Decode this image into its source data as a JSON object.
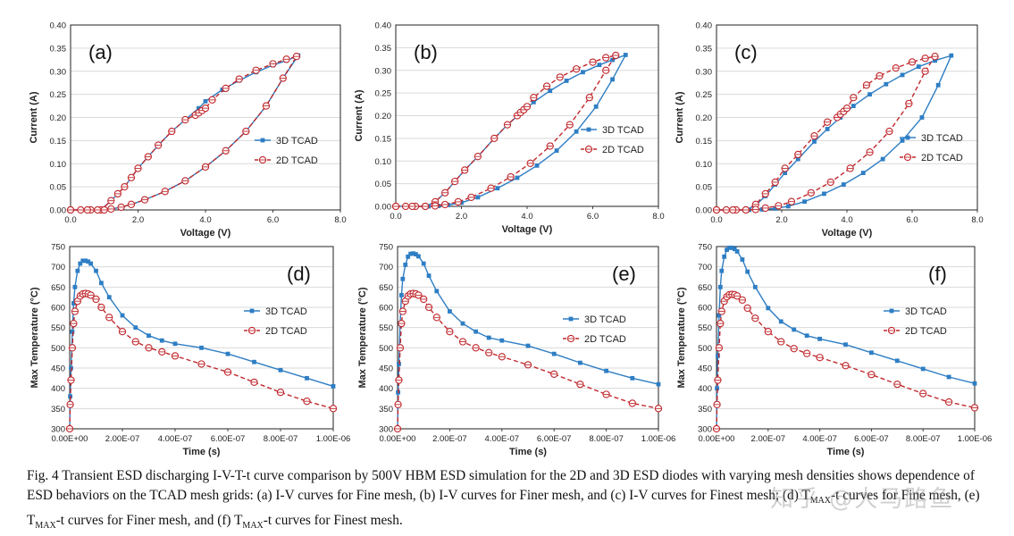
{
  "chart_data": [
    {
      "id": "a",
      "type": "scatter",
      "panel_label": "(a)",
      "xlabel": "Voltage (V)",
      "ylabel": "Current (A)",
      "xlim": [
        0,
        8
      ],
      "ylim": [
        0,
        0.4
      ],
      "xticks": [
        "0.0",
        "2.0",
        "4.0",
        "6.0",
        "8.0"
      ],
      "yticks": [
        "0.00",
        "0.05",
        "0.10",
        "0.15",
        "0.20",
        "0.25",
        "0.30",
        "0.35",
        "0.40"
      ],
      "legend_position": "center-right",
      "series": [
        {
          "name": "3D TCAD",
          "color": "#2e7ec4",
          "style": "solid-square",
          "x": [
            0.0,
            0.3,
            0.6,
            0.9,
            1.2,
            1.4,
            1.6,
            1.8,
            2.0,
            2.3,
            2.6,
            3.0,
            3.4,
            3.8,
            4.0,
            4.5,
            5.0,
            5.5,
            6.0,
            6.4,
            6.75,
            6.3,
            5.8,
            5.2,
            4.6,
            4.0,
            3.4,
            2.8,
            2.2,
            1.8,
            1.5,
            1.2,
            1.0,
            0.8,
            0.5,
            0.0
          ],
          "y": [
            0.0,
            0.0,
            0.0,
            0.0,
            0.02,
            0.035,
            0.05,
            0.07,
            0.09,
            0.115,
            0.14,
            0.17,
            0.195,
            0.22,
            0.235,
            0.26,
            0.28,
            0.298,
            0.313,
            0.323,
            0.334,
            0.285,
            0.225,
            0.17,
            0.128,
            0.093,
            0.063,
            0.04,
            0.022,
            0.012,
            0.006,
            0.002,
            0.0,
            0.0,
            0.0,
            0.0
          ]
        },
        {
          "name": "2D TCAD",
          "color": "#c0282d",
          "style": "dashed-open-circle",
          "x": [
            0.0,
            0.3,
            0.6,
            0.9,
            1.2,
            1.4,
            1.6,
            1.8,
            2.0,
            2.3,
            2.6,
            3.0,
            3.4,
            3.7,
            3.8,
            3.9,
            4.0,
            4.2,
            4.6,
            5.0,
            5.5,
            6.0,
            6.4,
            6.7,
            6.3,
            5.8,
            5.2,
            4.6,
            4.0,
            3.4,
            2.8,
            2.2,
            1.8,
            1.5,
            1.2,
            1.0,
            0.8,
            0.5,
            0.0
          ],
          "y": [
            0.0,
            0.0,
            0.0,
            0.0,
            0.02,
            0.035,
            0.05,
            0.07,
            0.09,
            0.115,
            0.14,
            0.17,
            0.195,
            0.205,
            0.21,
            0.215,
            0.22,
            0.238,
            0.263,
            0.283,
            0.302,
            0.316,
            0.326,
            0.332,
            0.285,
            0.225,
            0.17,
            0.128,
            0.093,
            0.063,
            0.04,
            0.022,
            0.012,
            0.006,
            0.002,
            0.0,
            0.0,
            0.0,
            0.0
          ]
        }
      ]
    },
    {
      "id": "b",
      "type": "scatter",
      "panel_label": "(b)",
      "xlabel": "Voltage (V)",
      "ylabel": "Current (A)",
      "xlim": [
        0,
        8
      ],
      "ylim": [
        0,
        0.4
      ],
      "xticks": [
        "0.0",
        "2.0",
        "4.0",
        "6.0",
        "8.0"
      ],
      "yticks": [
        "0.00",
        "0.05",
        "0.10",
        "0.15",
        "0.20",
        "0.25",
        "0.30",
        "0.35",
        "0.40"
      ],
      "legend_position": "center-right",
      "series": [
        {
          "name": "3D TCAD",
          "color": "#2e7ec4",
          "style": "solid-square",
          "x": [
            0.0,
            0.3,
            0.6,
            0.9,
            1.2,
            1.5,
            1.8,
            2.1,
            2.5,
            3.0,
            3.4,
            3.8,
            4.2,
            4.7,
            5.2,
            5.7,
            6.2,
            6.6,
            7.0,
            6.6,
            6.1,
            5.5,
            4.9,
            4.3,
            3.7,
            3.1,
            2.5,
            2.0,
            1.6,
            1.3,
            1.0,
            0.5,
            0.0
          ],
          "y": [
            0.0,
            0.0,
            0.0,
            0.0,
            0.01,
            0.03,
            0.055,
            0.08,
            0.11,
            0.15,
            0.18,
            0.205,
            0.23,
            0.255,
            0.277,
            0.296,
            0.312,
            0.323,
            0.334,
            0.28,
            0.22,
            0.165,
            0.123,
            0.09,
            0.063,
            0.04,
            0.02,
            0.008,
            0.003,
            0.001,
            0.0,
            0.0,
            0.0
          ]
        },
        {
          "name": "2D TCAD",
          "color": "#c0282d",
          "style": "dashed-open-circle",
          "x": [
            0.0,
            0.3,
            0.6,
            0.9,
            1.2,
            1.5,
            1.8,
            2.1,
            2.5,
            3.0,
            3.4,
            3.7,
            3.8,
            3.9,
            4.0,
            4.2,
            4.6,
            5.0,
            5.5,
            6.0,
            6.4,
            6.7,
            6.4,
            5.9,
            5.3,
            4.7,
            4.1,
            3.5,
            2.9,
            2.3,
            1.9,
            1.5,
            1.2,
            0.9,
            0.5,
            0.0
          ],
          "y": [
            0.0,
            0.0,
            0.0,
            0.0,
            0.01,
            0.03,
            0.055,
            0.08,
            0.11,
            0.15,
            0.18,
            0.2,
            0.207,
            0.213,
            0.22,
            0.24,
            0.265,
            0.285,
            0.303,
            0.318,
            0.328,
            0.333,
            0.3,
            0.24,
            0.18,
            0.133,
            0.095,
            0.065,
            0.04,
            0.02,
            0.01,
            0.004,
            0.001,
            0.0,
            0.0,
            0.0
          ]
        }
      ]
    },
    {
      "id": "c",
      "type": "scatter",
      "panel_label": "(c)",
      "xlabel": "Voltage (V)",
      "ylabel": "Current (A)",
      "xlim": [
        0,
        8
      ],
      "ylim": [
        0,
        0.4
      ],
      "xticks": [
        "0.0",
        "2.0",
        "4.0",
        "6.0",
        "8.0"
      ],
      "yticks": [
        "0.00",
        "0.05",
        "0.10",
        "0.15",
        "0.20",
        "0.25",
        "0.30",
        "0.35",
        "0.40"
      ],
      "legend_position": "center-right",
      "series": [
        {
          "name": "3D TCAD",
          "color": "#2e7ec4",
          "style": "solid-square",
          "x": [
            0.0,
            0.3,
            0.6,
            0.9,
            1.2,
            1.5,
            1.8,
            2.1,
            2.5,
            3.0,
            3.4,
            3.8,
            4.2,
            4.7,
            5.2,
            5.7,
            6.2,
            6.7,
            7.2,
            6.8,
            6.3,
            5.7,
            5.1,
            4.5,
            3.9,
            3.3,
            2.7,
            2.2,
            1.8,
            1.4,
            1.0,
            0.5,
            0.0
          ],
          "y": [
            0.0,
            0.0,
            0.0,
            0.0,
            0.01,
            0.03,
            0.055,
            0.08,
            0.11,
            0.148,
            0.175,
            0.2,
            0.225,
            0.25,
            0.272,
            0.292,
            0.31,
            0.323,
            0.334,
            0.27,
            0.2,
            0.15,
            0.11,
            0.08,
            0.055,
            0.035,
            0.018,
            0.008,
            0.003,
            0.001,
            0.0,
            0.0,
            0.0
          ]
        },
        {
          "name": "2D TCAD",
          "color": "#c0282d",
          "style": "dashed-open-circle",
          "x": [
            0.0,
            0.3,
            0.6,
            0.9,
            1.2,
            1.5,
            1.8,
            2.1,
            2.5,
            3.0,
            3.4,
            3.7,
            3.8,
            3.9,
            4.0,
            4.2,
            4.6,
            5.0,
            5.5,
            6.0,
            6.4,
            6.7,
            6.4,
            5.9,
            5.3,
            4.7,
            4.1,
            3.5,
            2.9,
            2.3,
            1.9,
            1.5,
            1.2,
            0.9,
            0.5,
            0.0
          ],
          "y": [
            0.0,
            0.0,
            0.0,
            0.0,
            0.012,
            0.035,
            0.06,
            0.09,
            0.12,
            0.16,
            0.19,
            0.2,
            0.207,
            0.213,
            0.22,
            0.243,
            0.27,
            0.29,
            0.307,
            0.32,
            0.328,
            0.332,
            0.3,
            0.23,
            0.17,
            0.125,
            0.09,
            0.06,
            0.037,
            0.018,
            0.009,
            0.004,
            0.001,
            0.0,
            0.0,
            0.0
          ]
        }
      ]
    },
    {
      "id": "d",
      "type": "line",
      "panel_label": "(d)",
      "xlabel": "Time (s)",
      "ylabel": "Max Temperature (°C)",
      "xlim": [
        0,
        1e-06
      ],
      "ylim": [
        300,
        750
      ],
      "xticks": [
        "0.00E+00",
        "2.00E-07",
        "4.00E-07",
        "6.00E-07",
        "8.00E-07",
        "1.00E-06"
      ],
      "yticks": [
        "300",
        "350",
        "400",
        "450",
        "500",
        "550",
        "600",
        "650",
        "700",
        "750"
      ],
      "legend_position": "center-right",
      "series": [
        {
          "name": "3D TCAD",
          "color": "#2e7ec4",
          "style": "solid-square",
          "x": [
            0.0,
            2e-09,
            5e-09,
            1e-08,
            1.5e-08,
            2e-08,
            3e-08,
            4e-08,
            5e-08,
            6e-08,
            7e-08,
            8e-08,
            1e-07,
            1.2e-07,
            1.5e-07,
            2e-07,
            2.5e-07,
            3e-07,
            3.5e-07,
            4e-07,
            5e-07,
            6e-07,
            7e-07,
            8e-07,
            9e-07,
            1e-06
          ],
          "y": [
            300,
            380,
            450,
            540,
            610,
            650,
            690,
            708,
            715,
            715,
            713,
            708,
            690,
            660,
            625,
            580,
            550,
            530,
            518,
            510,
            500,
            485,
            465,
            445,
            425,
            405
          ]
        },
        {
          "name": "2D TCAD",
          "color": "#c0282d",
          "style": "dashed-open-circle",
          "x": [
            0.0,
            2e-09,
            5e-09,
            1e-08,
            1.5e-08,
            2e-08,
            3e-08,
            4e-08,
            5e-08,
            6e-08,
            7e-08,
            8e-08,
            1e-07,
            1.2e-07,
            1.5e-07,
            2e-07,
            2.5e-07,
            3e-07,
            3.5e-07,
            4e-07,
            5e-07,
            6e-07,
            7e-07,
            8e-07,
            9e-07,
            1e-06
          ],
          "y": [
            300,
            360,
            420,
            500,
            560,
            590,
            615,
            628,
            633,
            634,
            633,
            630,
            620,
            600,
            575,
            540,
            515,
            500,
            490,
            480,
            460,
            440,
            415,
            390,
            368,
            350
          ]
        }
      ]
    },
    {
      "id": "e",
      "type": "line",
      "panel_label": "(e)",
      "xlabel": "Time (s)",
      "ylabel": "Max Temperature (°C)",
      "xlim": [
        0,
        1e-06
      ],
      "ylim": [
        300,
        750
      ],
      "xticks": [
        "0.00E+00",
        "2.00E-07",
        "4.00E-07",
        "6.00E-07",
        "8.00E-07",
        "1.00E-06"
      ],
      "yticks": [
        "300",
        "350",
        "400",
        "450",
        "500",
        "550",
        "600",
        "650",
        "700",
        "750"
      ],
      "legend_position": "center-right",
      "series": [
        {
          "name": "3D TCAD",
          "color": "#2e7ec4",
          "style": "solid-square",
          "x": [
            0.0,
            2e-09,
            5e-09,
            1e-08,
            1.5e-08,
            2e-08,
            3e-08,
            4e-08,
            5e-08,
            6e-08,
            7e-08,
            8e-08,
            1e-07,
            1.2e-07,
            1.5e-07,
            2e-07,
            2.5e-07,
            3e-07,
            3.5e-07,
            4e-07,
            5e-07,
            6e-07,
            7e-07,
            8e-07,
            9e-07,
            1e-06
          ],
          "y": [
            300,
            390,
            460,
            560,
            630,
            670,
            705,
            725,
            732,
            733,
            731,
            726,
            708,
            678,
            640,
            590,
            560,
            540,
            525,
            518,
            505,
            485,
            463,
            443,
            425,
            410
          ]
        },
        {
          "name": "2D TCAD",
          "color": "#c0282d",
          "style": "dashed-open-circle",
          "x": [
            0.0,
            2e-09,
            5e-09,
            1e-08,
            1.5e-08,
            2e-08,
            3e-08,
            4e-08,
            5e-08,
            6e-08,
            7e-08,
            8e-08,
            1e-07,
            1.2e-07,
            1.5e-07,
            2e-07,
            2.5e-07,
            3e-07,
            3.5e-07,
            4e-07,
            5e-07,
            6e-07,
            7e-07,
            8e-07,
            9e-07,
            1e-06
          ],
          "y": [
            300,
            360,
            420,
            500,
            560,
            590,
            615,
            628,
            633,
            634,
            633,
            630,
            620,
            600,
            575,
            540,
            515,
            500,
            488,
            478,
            458,
            435,
            410,
            385,
            363,
            350
          ]
        }
      ]
    },
    {
      "id": "f",
      "type": "line",
      "panel_label": "(f)",
      "xlabel": "Time (s)",
      "ylabel": "Max Temperature (°C)",
      "xlim": [
        0,
        1e-06
      ],
      "ylim": [
        300,
        750
      ],
      "xticks": [
        "0.00E+00",
        "2.00E-07",
        "4.00E-07",
        "6.00E-07",
        "8.00E-07",
        "1.00E-06"
      ],
      "yticks": [
        "300",
        "350",
        "400",
        "450",
        "500",
        "550",
        "600",
        "650",
        "700",
        "750"
      ],
      "legend_position": "center-right",
      "series": [
        {
          "name": "3D TCAD",
          "color": "#2e7ec4",
          "style": "solid-square",
          "x": [
            0.0,
            2e-09,
            5e-09,
            1e-08,
            1.5e-08,
            2e-08,
            3e-08,
            4e-08,
            5e-08,
            6e-08,
            7e-08,
            8e-08,
            1e-07,
            1.2e-07,
            1.5e-07,
            2e-07,
            2.5e-07,
            3e-07,
            3.5e-07,
            4e-07,
            5e-07,
            6e-07,
            7e-07,
            8e-07,
            9e-07,
            1e-06
          ],
          "y": [
            300,
            400,
            480,
            580,
            650,
            690,
            725,
            742,
            747,
            747,
            744,
            738,
            718,
            688,
            650,
            598,
            565,
            545,
            530,
            522,
            508,
            488,
            468,
            448,
            428,
            412
          ]
        },
        {
          "name": "2D TCAD",
          "color": "#c0282d",
          "style": "dashed-open-circle",
          "x": [
            0.0,
            2e-09,
            5e-09,
            1e-08,
            1.5e-08,
            2e-08,
            3e-08,
            4e-08,
            5e-08,
            6e-08,
            7e-08,
            8e-08,
            1e-07,
            1.2e-07,
            1.5e-07,
            2e-07,
            2.5e-07,
            3e-07,
            3.5e-07,
            4e-07,
            5e-07,
            6e-07,
            7e-07,
            8e-07,
            9e-07,
            1e-06
          ],
          "y": [
            300,
            360,
            420,
            500,
            560,
            590,
            615,
            626,
            631,
            632,
            631,
            628,
            618,
            598,
            573,
            540,
            515,
            498,
            486,
            476,
            456,
            434,
            410,
            387,
            366,
            352
          ]
        }
      ]
    }
  ],
  "caption": {
    "part1": "Fig. 4 Transient ESD discharging I-V-T-t curve comparison by 500V HBM  ESD simulation for the 2D and 3D ESD diodes with varying mesh densities shows dependence of ESD behaviors on the TCAD mesh grids: (a) I-V curves for Fine mesh, (b) I-V curves for Finer mesh, and (c) I-V curves for Finest mesh; (d) T",
    "sub1": "MAX",
    "part2": "-t curves for Fine mesh, (e) T",
    "sub2": "MAX",
    "part3": "-t curves for Finer mesh, and (f) T",
    "sub3": "MAX",
    "part4": "-t curves for Finest mesh."
  },
  "watermark": "知乎 @大马路鱼"
}
